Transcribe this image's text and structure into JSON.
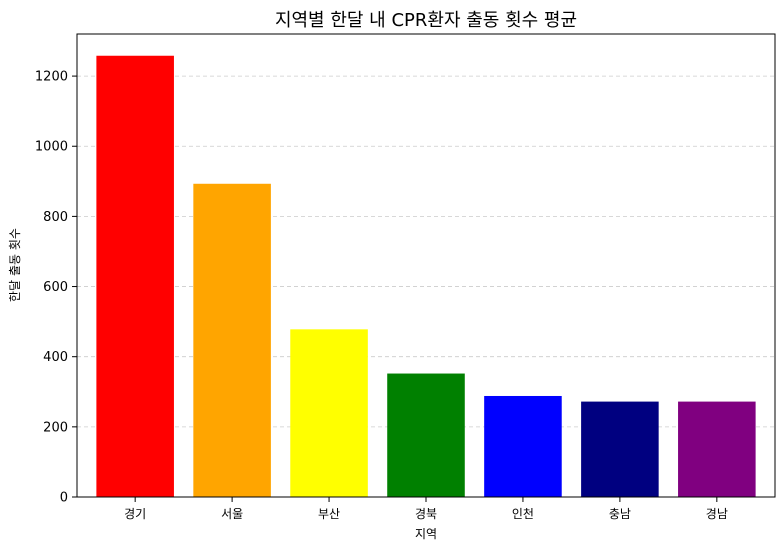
{
  "chart_data": {
    "type": "bar",
    "title": "지역별 한달 내 CPR환자 출동 횟수 평균",
    "xlabel": "지역",
    "ylabel": "한달 출동 횟수",
    "categories": [
      "경기",
      "서울",
      "부산",
      "경북",
      "인천",
      "충남",
      "경남"
    ],
    "values": [
      1258,
      893,
      478,
      352,
      288,
      272,
      272
    ],
    "colors": [
      "#ff0000",
      "#ffa500",
      "#ffff00",
      "#008000",
      "#0000ff",
      "#000080",
      "#800080"
    ],
    "ylim": [
      0,
      1320
    ],
    "yticks": [
      0,
      200,
      400,
      600,
      800,
      1000,
      1200
    ],
    "grid": "y-dashed"
  }
}
